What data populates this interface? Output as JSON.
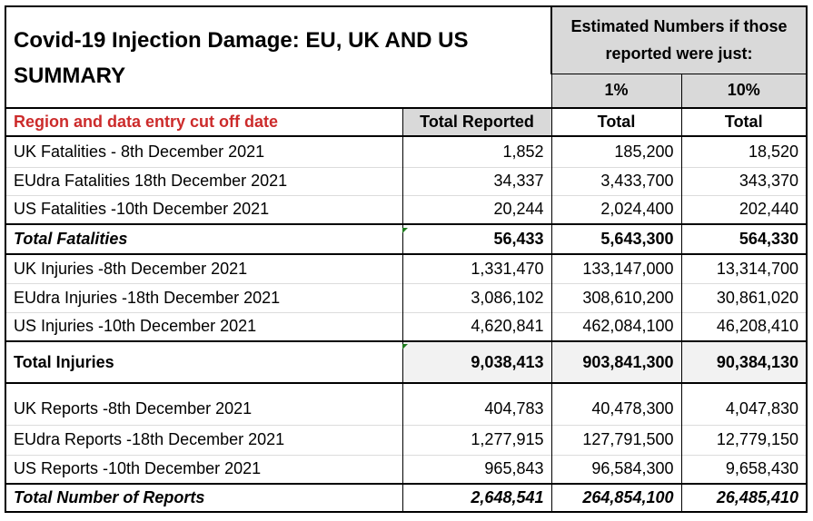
{
  "title_line1": "Covid-19 Injection Damage: EU, UK AND US",
  "title_line2": "SUMMARY",
  "estimate_header": "Estimated Numbers if those reported were just:",
  "pct_headers": [
    "1%",
    "10%"
  ],
  "col_headers": {
    "region": "Region and data entry cut off date",
    "total_reported": "Total Reported",
    "total_1": "Total",
    "total_10": "Total"
  },
  "colors": {
    "region_header": "#cc2b2b",
    "header_grey": "#d9d9d9",
    "tick_green": "#1e7a1e"
  },
  "rows": [
    {
      "label": "UK Fatalities - 8th December 2021",
      "reported": "1,852",
      "est1": "185,200",
      "est10": "18,520"
    },
    {
      "label": "EUdra Fatalities  18th December 2021",
      "reported": "34,337",
      "est1": "3,433,700",
      "est10": "343,370"
    },
    {
      "label": "US Fatalities -10th December 2021",
      "reported": "20,244",
      "est1": "2,024,400",
      "est10": "202,440"
    },
    {
      "label": "Total Fatalities",
      "reported": "56,433",
      "est1": "5,643,300",
      "est10": "564,330"
    },
    {
      "label": "UK Injuries -8th December 2021",
      "reported": "1,331,470",
      "est1": "133,147,000",
      "est10": "13,314,700"
    },
    {
      "label": "EUdra Injuries -18th December 2021",
      "reported": "3,086,102",
      "est1": "308,610,200",
      "est10": "30,861,020"
    },
    {
      "label": "US Injuries -10th December 2021",
      "reported": "4,620,841",
      "est1": "462,084,100",
      "est10": "46,208,410"
    },
    {
      "label": "Total Injuries",
      "reported": "9,038,413",
      "est1": "903,841,300",
      "est10": "90,384,130"
    },
    {
      "label": "UK Reports -8th December 2021",
      "reported": "404,783",
      "est1": "40,478,300",
      "est10": "4,047,830"
    },
    {
      "label": "EUdra Reports -18th December 2021",
      "reported": "1,277,915",
      "est1": "127,791,500",
      "est10": "12,779,150"
    },
    {
      "label": "US Reports -10th December 2021",
      "reported": "965,843",
      "est1": "96,584,300",
      "est10": "9,658,430"
    },
    {
      "label": "Total Number of Reports",
      "reported": "2,648,541",
      "est1": "264,854,100",
      "est10": "26,485,410"
    }
  ]
}
